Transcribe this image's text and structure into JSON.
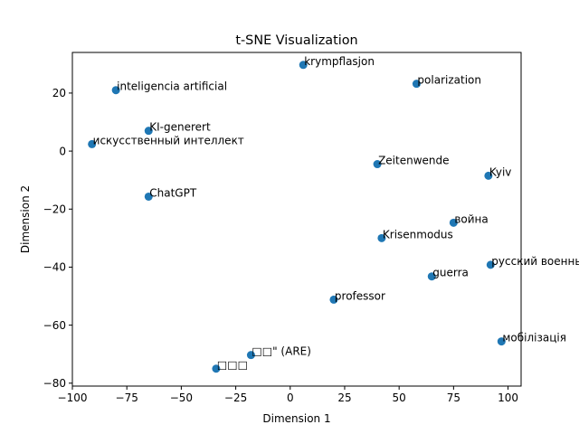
{
  "chart_data": {
    "type": "scatter",
    "title": "t-SNE Visualization",
    "xlabel": "Dimension 1",
    "ylabel": "Dimension 2",
    "xlim": [
      -100,
      106
    ],
    "ylim": [
      -81,
      34
    ],
    "xticks": [
      -100,
      -75,
      -50,
      -25,
      0,
      25,
      50,
      75,
      100
    ],
    "yticks": [
      -80,
      -60,
      -40,
      -20,
      0,
      20
    ],
    "xtick_labels": [
      "−100",
      "−75",
      "−50",
      "−25",
      "0",
      "25",
      "50",
      "75",
      "100"
    ],
    "ytick_labels": [
      "−80",
      "−60",
      "−40",
      "−20",
      "0",
      "20"
    ],
    "grid": false,
    "marker_color": "#1f77b4",
    "points": [
      {
        "x": 6,
        "y": 29.7,
        "label": "krympflasjon"
      },
      {
        "x": 58,
        "y": 23.2,
        "label": "polarization"
      },
      {
        "x": -80,
        "y": 21,
        "label": "inteligencia artificial"
      },
      {
        "x": -65,
        "y": 7,
        "label": "KI-generert"
      },
      {
        "x": -91,
        "y": 2.4,
        "label": "искусственный интеллект"
      },
      {
        "x": 40,
        "y": -4.5,
        "label": "Zeitenwende"
      },
      {
        "x": 91,
        "y": -8.5,
        "label": "Kyiv"
      },
      {
        "x": -65,
        "y": -15.7,
        "label": "ChatGPT"
      },
      {
        "x": 75,
        "y": -24.7,
        "label": "война"
      },
      {
        "x": 42,
        "y": -30,
        "label": "Krisenmodus"
      },
      {
        "x": 92,
        "y": -39.2,
        "label": "русский военный корабль, иди на хуй"
      },
      {
        "x": 65,
        "y": -43.2,
        "label": "guerra"
      },
      {
        "x": 20,
        "y": -51.2,
        "label": "professor"
      },
      {
        "x": 97,
        "y": -65.6,
        "label": "мобілізація"
      },
      {
        "x": -18,
        "y": -70.3,
        "label": "□□\" (ARE)"
      },
      {
        "x": -34,
        "y": -75,
        "label": "□□□"
      }
    ]
  }
}
